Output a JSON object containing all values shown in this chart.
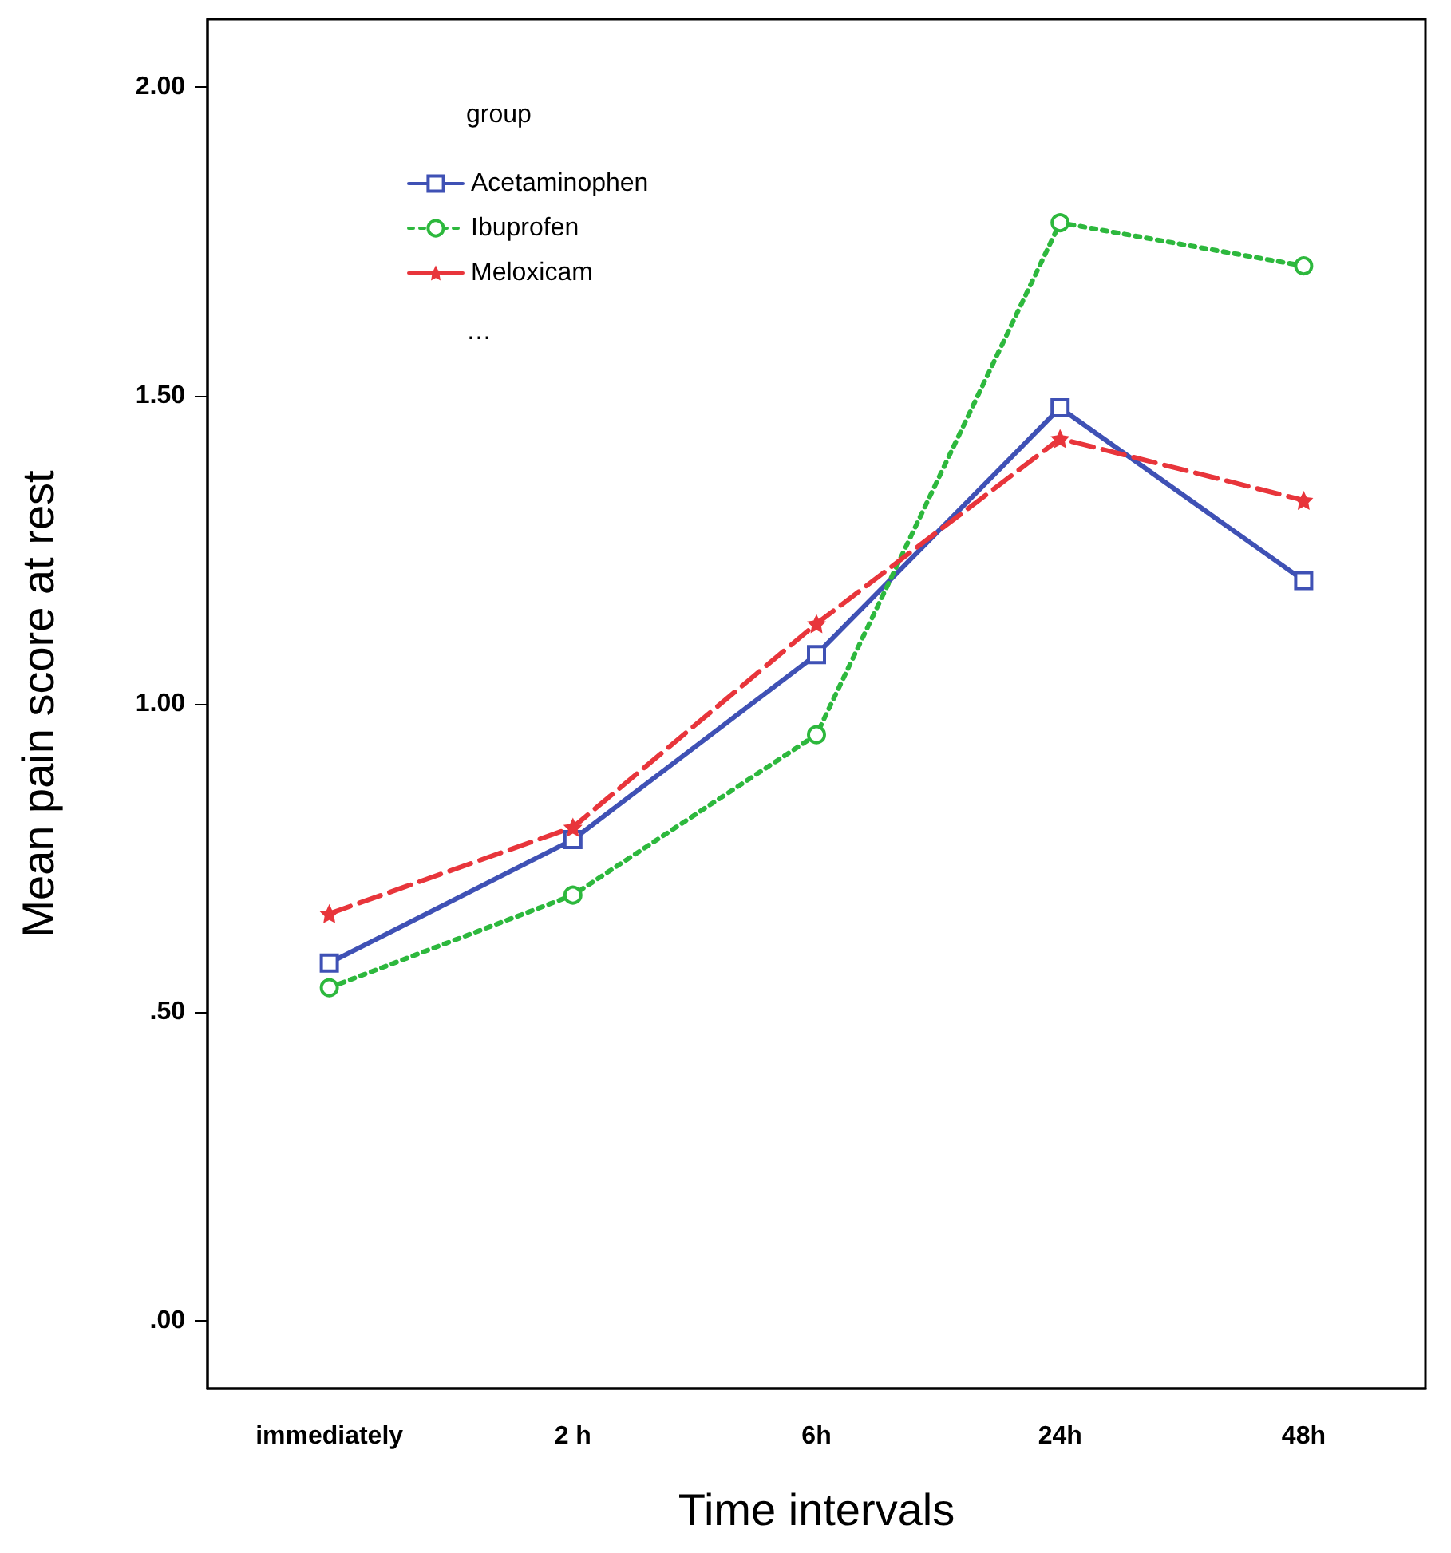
{
  "chart_data": {
    "type": "line",
    "xlabel": "Time intervals",
    "ylabel": "Mean pain score at rest",
    "legend_title": "group",
    "categories": [
      "immediately",
      "2 h",
      "6h",
      "24h",
      "48h"
    ],
    "series": [
      {
        "name": "Acetaminophen",
        "color": "#3f51b5",
        "marker": "square",
        "line_style": "solid",
        "values": [
          0.58,
          0.78,
          1.08,
          1.48,
          1.2
        ]
      },
      {
        "name": "Ibuprofen",
        "color": "#2db83d",
        "marker": "circle",
        "line_style": "dotted",
        "values": [
          0.54,
          0.69,
          0.95,
          1.78,
          1.71
        ]
      },
      {
        "name": "Meloxicam",
        "color": "#e8353b",
        "marker": "star",
        "line_style": "dashed",
        "values": [
          0.66,
          0.8,
          1.13,
          1.43,
          1.33
        ]
      }
    ],
    "ylim": [
      -0.11,
      2.11
    ],
    "yticks": [
      {
        "value": 0,
        "label": ".00"
      },
      {
        "value": 0.5,
        "label": ".50"
      },
      {
        "value": 1,
        "label": "1.00"
      },
      {
        "value": 1.5,
        "label": "1.50"
      },
      {
        "value": 2,
        "label": "2.00"
      }
    ],
    "annotations": [
      "…"
    ],
    "legend": "top left",
    "grid": false
  }
}
